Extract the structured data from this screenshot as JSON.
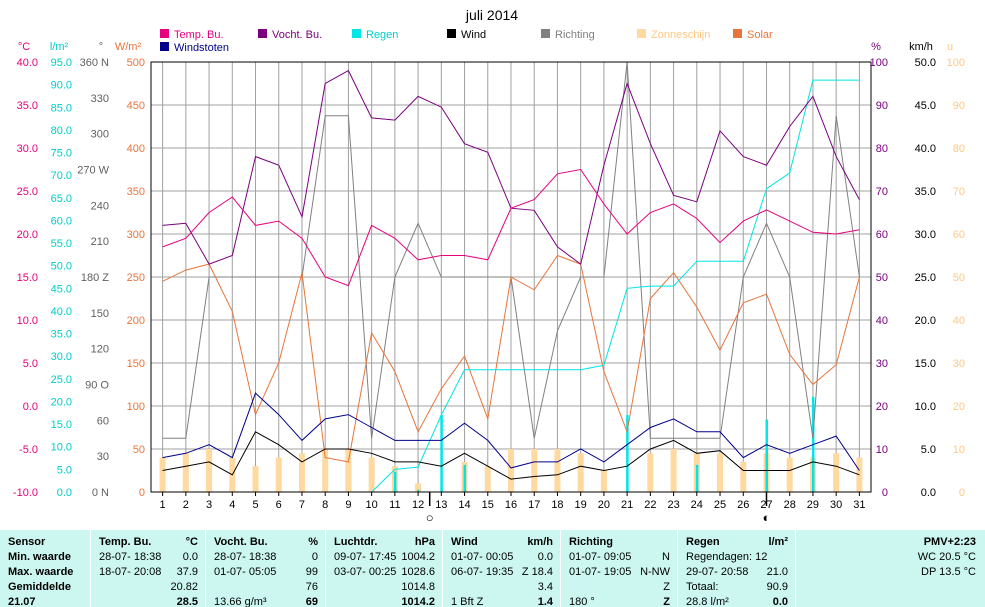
{
  "chart_data": {
    "type": "line",
    "title": "juli 2014",
    "x": [
      1,
      2,
      3,
      4,
      5,
      6,
      7,
      8,
      9,
      10,
      11,
      12,
      13,
      14,
      15,
      16,
      17,
      18,
      19,
      20,
      21,
      22,
      23,
      24,
      25,
      26,
      27,
      28,
      29,
      30,
      31
    ],
    "legend": [
      {
        "name": "Temp. Bu.",
        "color": "#e6007e"
      },
      {
        "name": "Vocht. Bu.",
        "color": "#7a0080"
      },
      {
        "name": "Regen",
        "color": "#00e5e5"
      },
      {
        "name": "Wind",
        "color": "#000000"
      },
      {
        "name": "Richting",
        "color": "#808080"
      },
      {
        "name": "Zonneschijn",
        "color": "#ffd9a0"
      },
      {
        "name": "Solar",
        "color": "#e8743b"
      },
      {
        "name": "Windstoten",
        "color": "#00008b"
      }
    ],
    "axes": {
      "temp": {
        "label": "°C",
        "ticks": [
          "40.0",
          "35.0",
          "30.0",
          "25.0",
          "20.0",
          "15.0",
          "10.0",
          "5.0",
          "0.0",
          "-5.0",
          "-10.0"
        ],
        "color": "#e6007e"
      },
      "rain": {
        "label": "l/m²",
        "ticks": [
          "95.0",
          "90.0",
          "85.0",
          "80.0",
          "75.0",
          "70.0",
          "65.0",
          "60.0",
          "55.0",
          "50.0",
          "45.0",
          "40.0",
          "35.0",
          "30.0",
          "25.0",
          "20.0",
          "15.0",
          "10.0",
          "5.0",
          "0.0"
        ],
        "color": "#00cccc"
      },
      "dir": {
        "label": "°",
        "ticks": [
          "360 N",
          "330",
          "300",
          "270 W",
          "240",
          "210",
          "180 Z",
          "150",
          "120",
          "90 O",
          "60",
          "30",
          "0 N"
        ],
        "color": "#606060"
      },
      "solar": {
        "label": "W/m²",
        "ticks": [
          "500",
          "450",
          "400",
          "350",
          "300",
          "250",
          "200",
          "150",
          "100",
          "50",
          "0"
        ],
        "color": "#e8743b"
      },
      "hum": {
        "label": "%",
        "ticks": [
          "100",
          "90",
          "80",
          "70",
          "60",
          "50",
          "40",
          "30",
          "20",
          "10",
          "0"
        ],
        "color": "#7a0080"
      },
      "wind": {
        "label": "km/h",
        "ticks": [
          "50.0",
          "45.0",
          "40.0",
          "35.0",
          "30.0",
          "25.0",
          "20.0",
          "15.0",
          "10.0",
          "5.0",
          "0.0"
        ],
        "color": "#000000"
      },
      "sun": {
        "label": "u",
        "ticks": [
          "100",
          "90",
          "80",
          "70",
          "60",
          "50",
          "40",
          "30",
          "20",
          "10",
          "0"
        ],
        "color": "#ffd9a0"
      }
    },
    "moon_markers": [
      {
        "day": 12.5,
        "symbol": "○"
      },
      {
        "day": 27,
        "symbol": "◐"
      }
    ],
    "series": [
      {
        "name": "Temp. Bu.",
        "unit": "°C",
        "values": [
          18.5,
          19.5,
          22.5,
          24.3,
          21.0,
          21.5,
          19.5,
          15.0,
          14.0,
          21.0,
          19.5,
          17.0,
          17.5,
          17.5,
          17.0,
          23.0,
          24.0,
          27.0,
          27.5,
          23.5,
          20.0,
          22.5,
          23.5,
          21.8,
          19.0,
          21.5,
          22.8,
          21.5,
          20.2,
          20.0,
          20.5
        ]
      },
      {
        "name": "Vocht. Bu.",
        "unit": "%",
        "values": [
          62,
          62.5,
          53,
          55,
          78,
          76,
          64,
          95,
          98,
          87,
          86.5,
          92,
          89.5,
          81,
          79,
          66,
          65.5,
          57,
          53,
          76,
          95,
          81,
          69,
          67.5,
          84,
          78,
          76,
          85,
          92,
          78,
          68
        ]
      },
      {
        "name": "Regen",
        "unit": "l/m²",
        "values": [
          0,
          0,
          0,
          0,
          0,
          0,
          0,
          0,
          0,
          0,
          5,
          5.5,
          17,
          27,
          27,
          27,
          27,
          27,
          27,
          28,
          45,
          45.5,
          45.5,
          51,
          51,
          51,
          67,
          70.5,
          91,
          91,
          91
        ]
      },
      {
        "name": "Wind",
        "unit": "km/h",
        "values": [
          2.5,
          3.0,
          3.5,
          2.0,
          7.0,
          5.5,
          3.5,
          5.0,
          5.0,
          4.5,
          3.5,
          3.5,
          3.0,
          4.5,
          3.0,
          1.5,
          1.8,
          2.0,
          3.0,
          2.5,
          3.0,
          5.0,
          6.0,
          4.5,
          4.8,
          2.5,
          2.5,
          2.5,
          3.5,
          3.0,
          2.0
        ]
      },
      {
        "name": "Windstoten",
        "unit": "km/h",
        "values": [
          4.0,
          4.5,
          5.5,
          4.0,
          11.5,
          9.0,
          6.0,
          8.5,
          9.0,
          7.5,
          6.0,
          6.0,
          6.0,
          8.0,
          6.0,
          2.8,
          3.5,
          3.5,
          5.0,
          3.5,
          5.5,
          7.5,
          8.5,
          7.0,
          7.0,
          4.0,
          5.5,
          4.5,
          5.5,
          6.5,
          2.5
        ]
      },
      {
        "name": "Richting",
        "unit": "°",
        "values": [
          45,
          45,
          180,
          180,
          180,
          180,
          180,
          315,
          315,
          45,
          180,
          225,
          180,
          180,
          180,
          180,
          45,
          135,
          180,
          180,
          360,
          45,
          45,
          45,
          45,
          180,
          225,
          180,
          45,
          315,
          180
        ]
      },
      {
        "name": "Solar",
        "unit": "W/m²",
        "values": [
          245,
          258,
          265,
          210,
          90,
          150,
          255,
          40,
          35,
          185,
          140,
          70,
          120,
          158,
          85,
          250,
          235,
          275,
          265,
          140,
          70,
          225,
          255,
          215,
          165,
          220,
          230,
          160,
          125,
          148,
          250
        ]
      },
      {
        "name": "Zonneschijn",
        "unit": "u",
        "values": [
          8,
          9,
          10,
          8,
          6,
          8,
          9,
          10,
          10,
          8,
          6,
          2,
          0,
          7,
          6,
          10,
          10,
          10,
          9,
          5,
          0,
          9,
          10,
          9,
          9,
          7,
          9,
          8,
          8,
          9,
          8
        ]
      },
      {
        "name": "Regen per dag",
        "unit": "l/m²",
        "values": [
          0,
          0,
          0,
          0,
          0,
          0,
          0,
          0,
          0,
          0,
          4.5,
          0.5,
          17,
          6,
          0,
          0,
          0,
          0,
          0,
          0,
          17,
          0,
          0,
          6,
          0,
          0,
          16,
          0,
          21,
          0,
          0
        ]
      }
    ],
    "xlim": [
      0.5,
      31.5
    ]
  },
  "stats": {
    "cols": [
      {
        "header": "Sensor",
        "rows": [
          "Min. waarde",
          "Max. waarde",
          "Gemiddelde",
          "21.07"
        ]
      },
      {
        "header": "Temp. Bu.",
        "unit": "°C",
        "rows": [
          [
            "28-07- 18:38",
            "0.0"
          ],
          [
            "18-07- 20:08",
            "37.9"
          ],
          [
            "",
            "20.82"
          ],
          [
            "",
            "28.5"
          ]
        ]
      },
      {
        "header": "Vocht. Bu.",
        "unit": "%",
        "rows": [
          [
            "28-07- 18:38",
            "0"
          ],
          [
            "01-07- 05:05",
            "99"
          ],
          [
            "",
            "76"
          ],
          [
            "13.66 g/m³",
            "69"
          ]
        ]
      },
      {
        "header": "Luchtdr.",
        "unit": "hPa",
        "rows": [
          [
            "09-07- 17:45",
            "1004.2"
          ],
          [
            "03-07- 00:25",
            "1028.6"
          ],
          [
            "",
            "1014.8"
          ],
          [
            "",
            "1014.2"
          ]
        ]
      },
      {
        "header": "Wind",
        "unit": "km/h",
        "rows": [
          [
            "01-07- 00:05",
            "0.0"
          ],
          [
            "06-07- 19:35",
            "Z 18.4"
          ],
          [
            "",
            "3.4"
          ],
          [
            "1 Bft Z",
            "1.4"
          ]
        ]
      },
      {
        "header": "Richting",
        "unit": "",
        "rows": [
          [
            "01-07- 09:05",
            "N"
          ],
          [
            "01-07- 19:05",
            "N-NW"
          ],
          [
            "",
            "Z"
          ],
          [
            "180 °",
            "Z"
          ]
        ]
      },
      {
        "header": "Regen",
        "unit": "l/m²",
        "rows": [
          [
            "Regendagen: 12",
            ""
          ],
          [
            "29-07- 20:58",
            "21.0"
          ],
          [
            "Totaal:",
            "90.9"
          ],
          [
            "28.8 l/m²",
            "0.0"
          ]
        ]
      },
      {
        "header": "PMV+2:23",
        "rows": [
          "WC 20.5 °C",
          "DP 13.5 °C"
        ]
      }
    ]
  }
}
